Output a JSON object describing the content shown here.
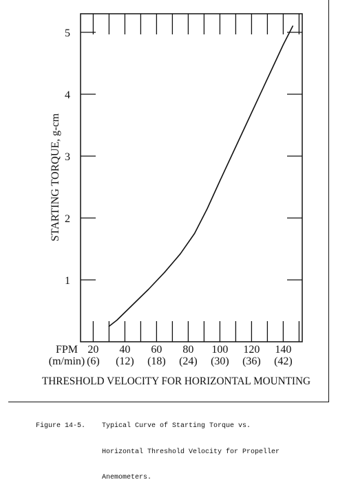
{
  "chart_data": {
    "type": "line",
    "title": "",
    "ylabel": "STARTING TORQUE, g-cm",
    "xlabel": "THRESHOLD VELOCITY FOR HORIZONTAL MOUNTING",
    "x_unit_primary": "FPM",
    "x_unit_secondary": "(m/min)",
    "x_ticks": [
      {
        "value": 20,
        "label": "20",
        "sublabel": "(6)"
      },
      {
        "value": 40,
        "label": "40",
        "sublabel": "(12)"
      },
      {
        "value": 60,
        "label": "60",
        "sublabel": "(18)"
      },
      {
        "value": 80,
        "label": "80",
        "sublabel": "(24)"
      },
      {
        "value": 100,
        "label": "100",
        "sublabel": "(30)"
      },
      {
        "value": 120,
        "label": "120",
        "sublabel": "(36)"
      },
      {
        "value": 140,
        "label": "140",
        "sublabel": "(42)"
      }
    ],
    "y_ticks": [
      {
        "value": 1,
        "label": "1"
      },
      {
        "value": 2,
        "label": "2"
      },
      {
        "value": 3,
        "label": "3"
      },
      {
        "value": 4,
        "label": "4"
      },
      {
        "value": 5,
        "label": "5"
      }
    ],
    "xlim": [
      12,
      152
    ],
    "ylim": [
      0,
      5.3
    ],
    "grid": false,
    "series": [
      {
        "x": [
          30,
          35,
          45,
          55,
          65,
          75,
          84,
          92,
          100,
          110,
          120,
          130,
          140,
          146
        ],
        "y": [
          0.25,
          0.35,
          0.6,
          0.85,
          1.12,
          1.42,
          1.75,
          2.15,
          2.6,
          3.15,
          3.7,
          4.25,
          4.8,
          5.1
        ]
      }
    ]
  },
  "caption": {
    "label": "Figure 14-5.",
    "lines": [
      "Typical Curve of Starting Torque vs.",
      "Horizontal Threshold Velocity for Propeller",
      "Anemometers."
    ]
  }
}
